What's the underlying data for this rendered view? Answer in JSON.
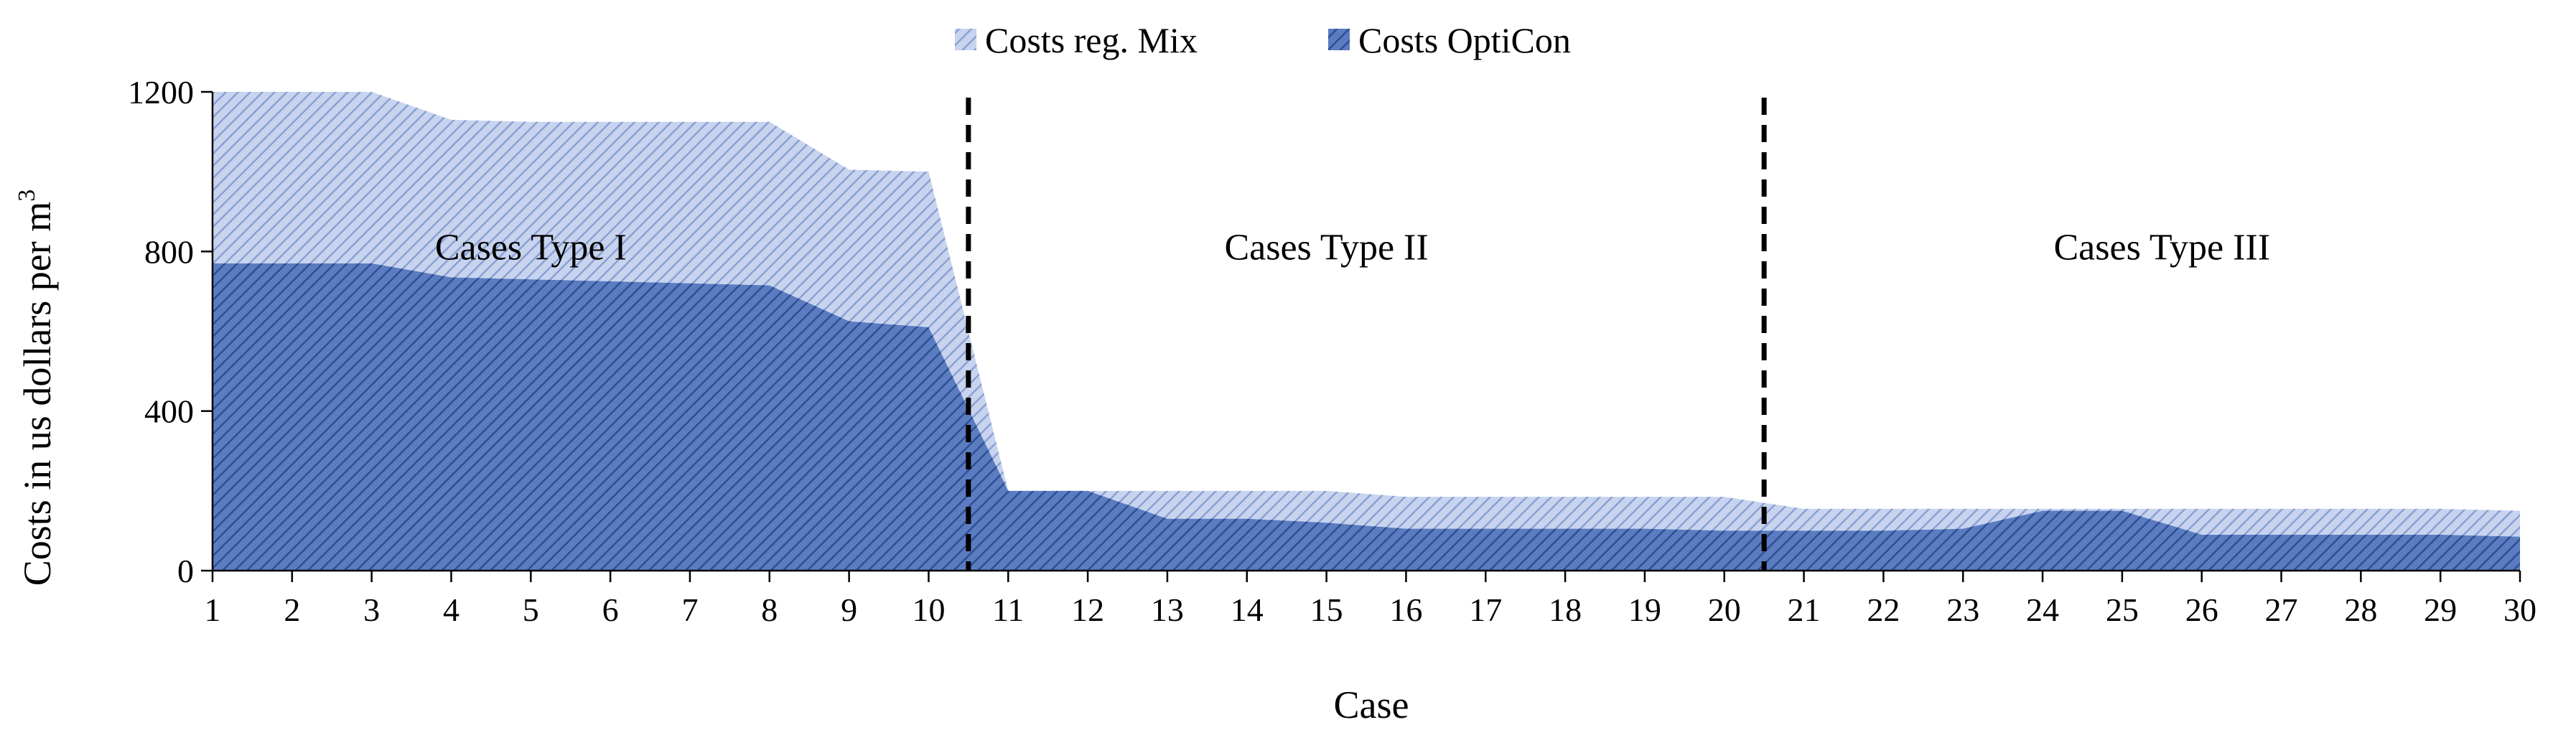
{
  "chart_data": {
    "type": "area",
    "title": "",
    "xlabel": "Case",
    "ylabel": "Costs in us dollars per m",
    "ylabel_superscript": "3",
    "x": [
      1,
      2,
      3,
      4,
      5,
      6,
      7,
      8,
      9,
      10,
      11,
      12,
      13,
      14,
      15,
      16,
      17,
      18,
      19,
      20,
      21,
      22,
      23,
      24,
      25,
      26,
      27,
      28,
      29,
      30
    ],
    "xlim": [
      1,
      30
    ],
    "ylim": [
      0,
      1200
    ],
    "yticks": [
      0,
      400,
      800,
      1200
    ],
    "grid": false,
    "legend": {
      "position": "top-center"
    },
    "series": [
      {
        "name": "Costs reg. Mix",
        "color": "#b4c3e6",
        "hatch": "#7f97cf",
        "values": [
          1200,
          1200,
          1200,
          1130,
          1125,
          1125,
          1125,
          1125,
          1005,
          1000,
          200,
          200,
          200,
          200,
          200,
          185,
          185,
          185,
          185,
          185,
          155,
          155,
          155,
          155,
          155,
          155,
          155,
          155,
          155,
          150
        ]
      },
      {
        "name": "Costs OptiCon",
        "color": "#4a6fb5",
        "hatch": "#2a4a8c",
        "values": [
          770,
          770,
          770,
          735,
          730,
          725,
          720,
          715,
          625,
          610,
          200,
          200,
          130,
          130,
          120,
          105,
          105,
          105,
          105,
          100,
          100,
          100,
          105,
          150,
          150,
          90,
          90,
          90,
          90,
          85
        ]
      }
    ],
    "separators": [
      10.5,
      20.5
    ],
    "regions": [
      {
        "label": "Cases Type I",
        "x": 5.0,
        "y": 780
      },
      {
        "label": "Cases Type II",
        "x": 15.0,
        "y": 780
      },
      {
        "label": "Cases Type III",
        "x": 25.5,
        "y": 780
      }
    ]
  }
}
